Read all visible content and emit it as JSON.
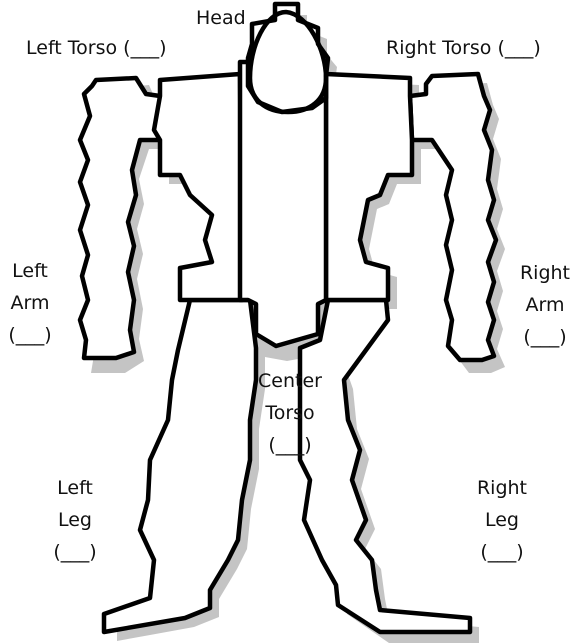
{
  "colors": {
    "outline": "#000000",
    "fill": "#ffffff",
    "shadow": "#c4c4c4",
    "text": "#111111"
  },
  "labels": {
    "head": {
      "line1": "Head"
    },
    "left_torso": {
      "line1": "Left Torso (___)"
    },
    "right_torso": {
      "line1": "Right Torso (___)"
    },
    "left_arm": {
      "line1": "Left",
      "line2": "Arm",
      "line3": "(___)"
    },
    "right_arm": {
      "line1": "Right",
      "line2": "Arm",
      "line3": "(___)"
    },
    "center_torso": {
      "line1": "Center",
      "line2": "Torso",
      "line3": "(___)"
    },
    "left_leg": {
      "line1": "Left",
      "line2": "Leg",
      "line3": "(___)"
    },
    "right_leg": {
      "line1": "Right",
      "line2": "Leg",
      "line3": "(___)"
    }
  }
}
